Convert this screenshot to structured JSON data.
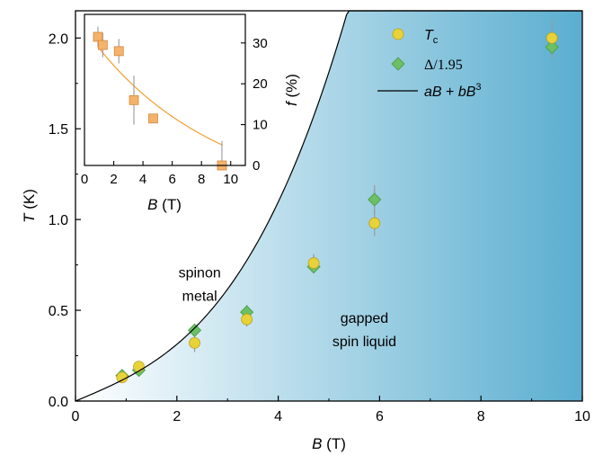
{
  "chart_data": [
    {
      "type": "scatter",
      "xlabel": "B (T)",
      "ylabel": "T (K)",
      "xlim": [
        0,
        10
      ],
      "ylim": [
        0,
        2.15
      ],
      "xticks": [
        "0",
        "2",
        "4",
        "6",
        "8",
        "10"
      ],
      "yticks": [
        "0.0",
        "0.5",
        "1.0",
        "1.5",
        "2.0"
      ],
      "legend_placement": "top-right",
      "series": [
        {
          "name": "Tc",
          "label_main": "T",
          "label_sub": "c",
          "marker": "circle",
          "color": "#e8d23a",
          "x": [
            0.92,
            1.25,
            2.35,
            3.38,
            4.7,
            5.9,
            9.4
          ],
          "y": [
            0.13,
            0.19,
            0.32,
            0.45,
            0.76,
            0.98,
            2.0
          ],
          "err": [
            0.0,
            0.0,
            0.05,
            0.04,
            0.05,
            0.07,
            0.1
          ]
        },
        {
          "name": "Δ/1.95",
          "label_main": "Δ/1.95",
          "marker": "diamond",
          "color": "#6cbf65",
          "x": [
            0.92,
            1.25,
            2.35,
            3.38,
            4.7,
            5.9,
            9.4
          ],
          "y": [
            0.14,
            0.17,
            0.39,
            0.49,
            0.74,
            1.11,
            1.95
          ],
          "err": [
            0.0,
            0.0,
            0.0,
            0.04,
            0.0,
            0.08,
            0.06
          ]
        },
        {
          "name": "aB + bB^3",
          "label_a": "aB",
          "label_plus": " + ",
          "label_b": "bB",
          "label_sup": "3",
          "marker": "line",
          "color": "#000000",
          "coef_a": 0.117,
          "coef_b": 0.00982
        }
      ],
      "annotations": [
        {
          "lines": [
            "spinon",
            "metal"
          ],
          "x": 2.45,
          "y": 0.68
        },
        {
          "lines": [
            "gapped",
            "spin liquid"
          ],
          "x": 5.7,
          "y": 0.43
        }
      ],
      "region_fill": {
        "from": "#ffffff",
        "to": "#5aaed0"
      }
    },
    {
      "type": "scatter",
      "xlabel": "B (T)",
      "ylabel": "f (%)",
      "xlim": [
        0,
        11
      ],
      "ylim": [
        0,
        37
      ],
      "xticks": [
        "0",
        "2",
        "4",
        "6",
        "8",
        "10"
      ],
      "yticks": [
        "0",
        "10",
        "20",
        "30"
      ],
      "series": [
        {
          "name": "f",
          "marker": "square",
          "color": "#f5b26b",
          "x": [
            0.92,
            1.25,
            2.35,
            3.38,
            4.7,
            9.4
          ],
          "y": [
            31.5,
            29.5,
            28.0,
            16.0,
            11.5,
            0.0
          ],
          "err": [
            2.5,
            3.0,
            3.0,
            6.0,
            0.0,
            6.0
          ],
          "fit_color": "#f0a030",
          "fit": {
            "amplitude": 33.5,
            "scale": 7.18,
            "offset": 4.0
          }
        }
      ]
    }
  ]
}
